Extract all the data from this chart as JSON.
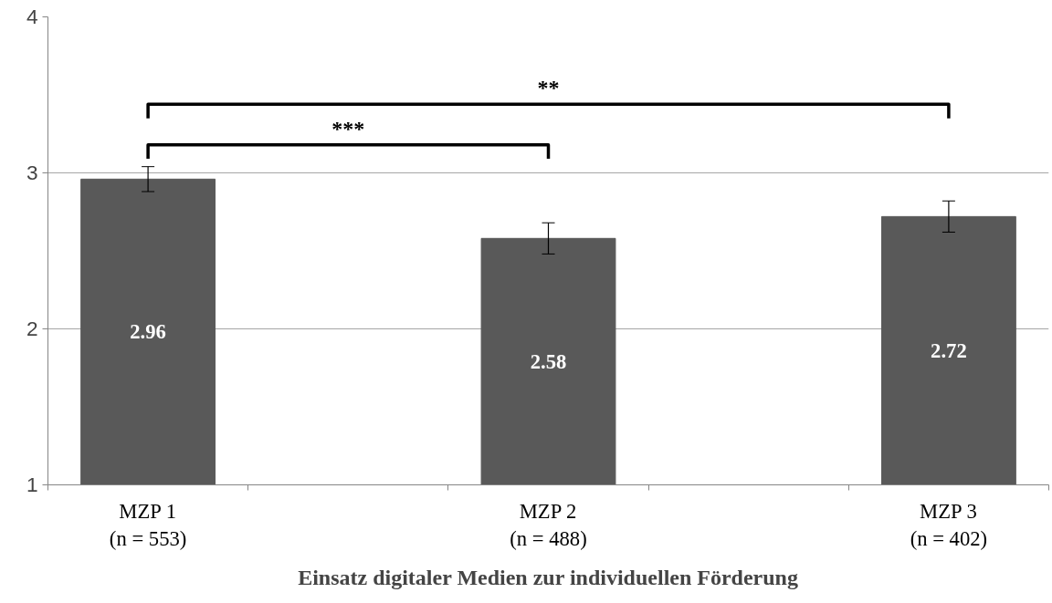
{
  "chart_data": {
    "type": "bar",
    "xlabel": "Einsatz digitaler Medien zur individuellen Förderung",
    "categories": [
      "MZP 1\n(n = 553)",
      null,
      "MZP 2\n(n = 488)",
      null,
      "MZP 3\n(n = 402)"
    ],
    "values": [
      2.96,
      null,
      2.58,
      null,
      2.72
    ],
    "errors": [
      0.08,
      null,
      0.1,
      null,
      0.1
    ],
    "color": "#595959",
    "ylim": [
      1,
      4
    ],
    "yticks": [
      1,
      2,
      3,
      4
    ],
    "grid": "y",
    "data_labels": true,
    "annotations": [
      "***",
      "**"
    ]
  }
}
